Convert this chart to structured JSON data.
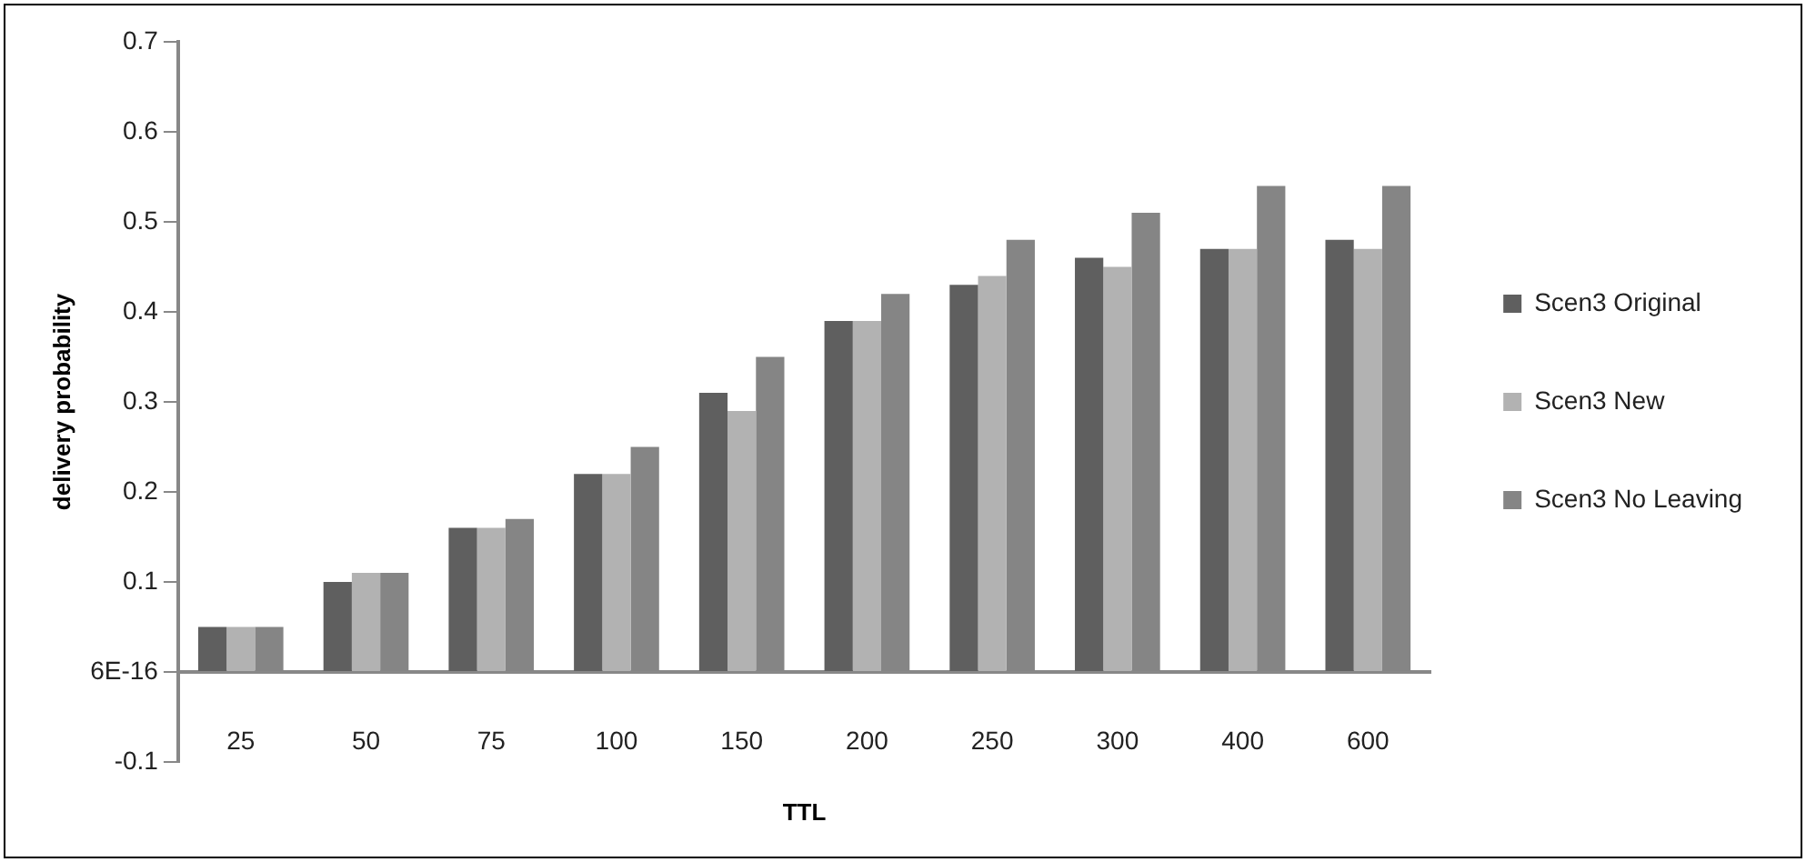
{
  "chart_data": {
    "type": "bar",
    "xlabel": "TTL",
    "ylabel": "delivery probability",
    "categories": [
      "25",
      "50",
      "75",
      "100",
      "150",
      "200",
      "250",
      "300",
      "400",
      "600"
    ],
    "series": [
      {
        "name": "Scen3 Original",
        "color": "#5f5f5f",
        "values": [
          0.05,
          0.1,
          0.16,
          0.22,
          0.31,
          0.39,
          0.43,
          0.46,
          0.47,
          0.48
        ]
      },
      {
        "name": "Scen3 New",
        "color": "#b2b2b2",
        "values": [
          0.05,
          0.11,
          0.16,
          0.22,
          0.29,
          0.39,
          0.44,
          0.45,
          0.47,
          0.47
        ]
      },
      {
        "name": "Scen3 No Leaving",
        "color": "#858585",
        "values": [
          0.05,
          0.11,
          0.17,
          0.25,
          0.35,
          0.42,
          0.48,
          0.51,
          0.54,
          0.54
        ]
      }
    ],
    "ylim": [
      -0.1,
      0.7
    ],
    "yticks": [
      -0.1,
      {
        "value": 0,
        "label": "6E-16"
      },
      0.1,
      0.2,
      0.3,
      0.4,
      0.5,
      0.6,
      0.7
    ],
    "grid": false,
    "legend": "right"
  }
}
